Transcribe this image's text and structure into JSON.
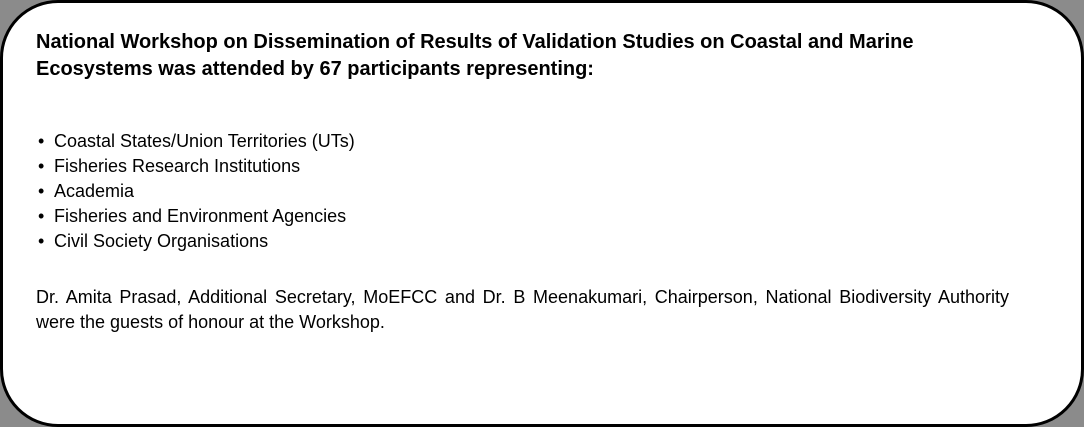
{
  "page": {
    "background_color": "#8b8b8b"
  },
  "card": {
    "fill_color": "#ffffff",
    "border_color": "#000000",
    "text_color": "#000000",
    "heading": "National Workshop on Dissemination of Results of Validation Studies on Coastal and Marine Ecosystems was attended by 67 participants representing:",
    "bullet_glyph": "•",
    "bullets": [
      "Coastal States/Union Territories (UTs)",
      "Fisheries Research Institutions",
      "Academia",
      "Fisheries and Environment Agencies",
      "Civil Society Organisations"
    ],
    "paragraph": "Dr. Amita Prasad, Additional Secretary, MoEFCC and Dr. B Meenakumari, Chairperson, National Biodiversity Authority were the guests of honour at the Workshop."
  }
}
